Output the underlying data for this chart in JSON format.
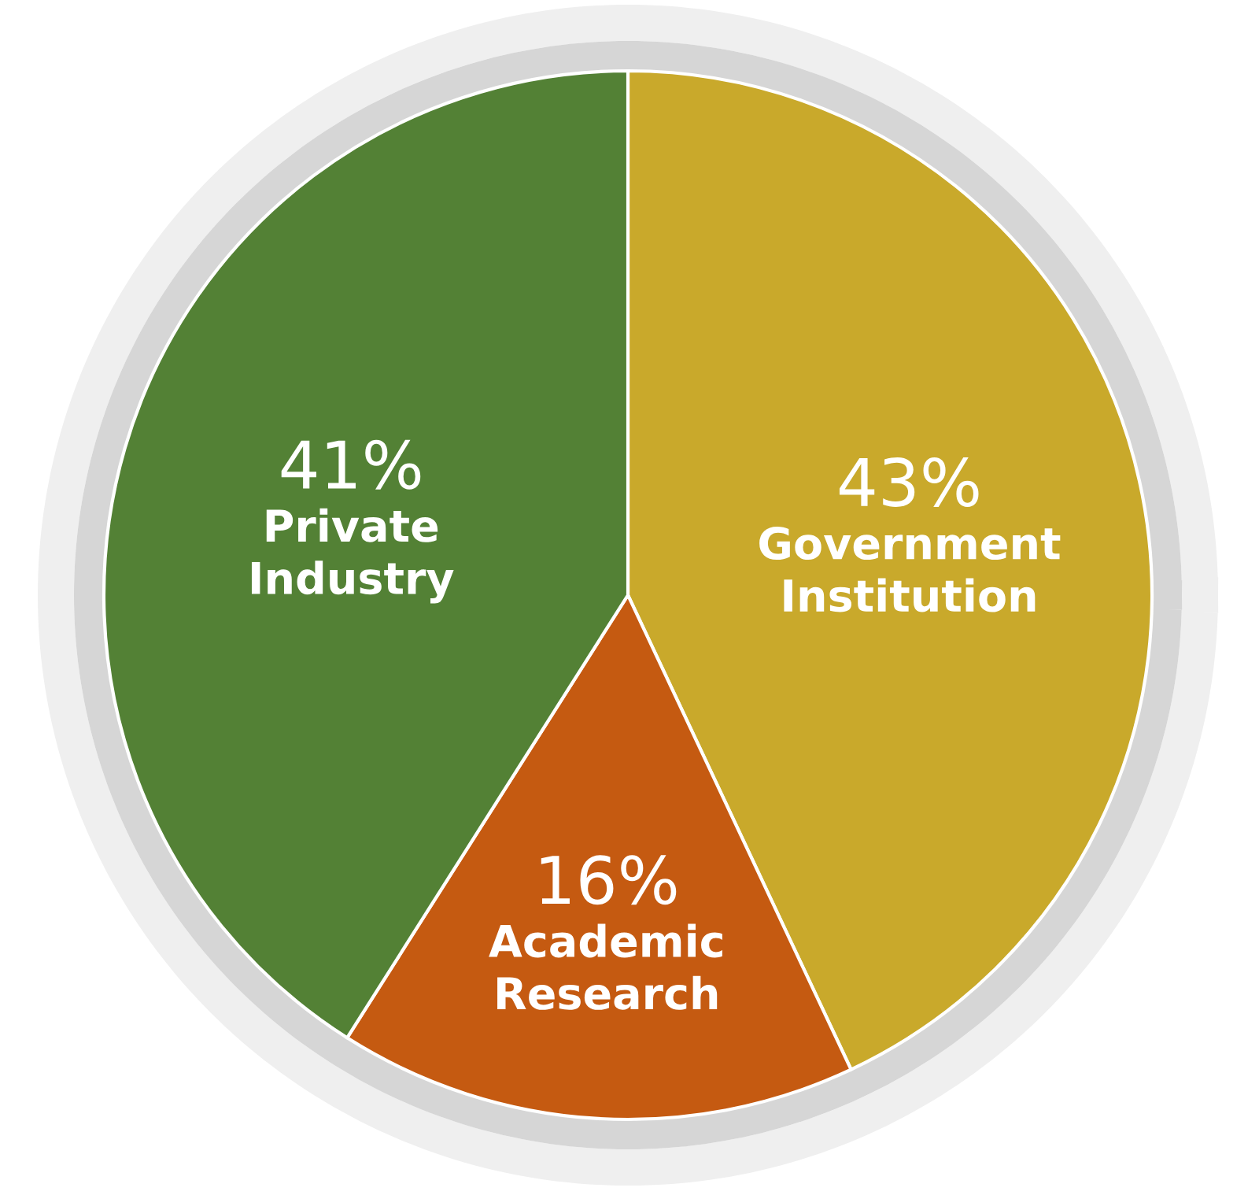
{
  "chart_data": {
    "type": "pie",
    "categories": [
      "Government\nInstitution",
      "Academic\nResearch",
      "Private\nIndustry"
    ],
    "values": [
      43,
      16,
      41
    ],
    "value_labels": [
      "43%",
      "16%",
      "41%"
    ],
    "colors": [
      "#c9a92b",
      "#c55a11",
      "#538135"
    ]
  }
}
